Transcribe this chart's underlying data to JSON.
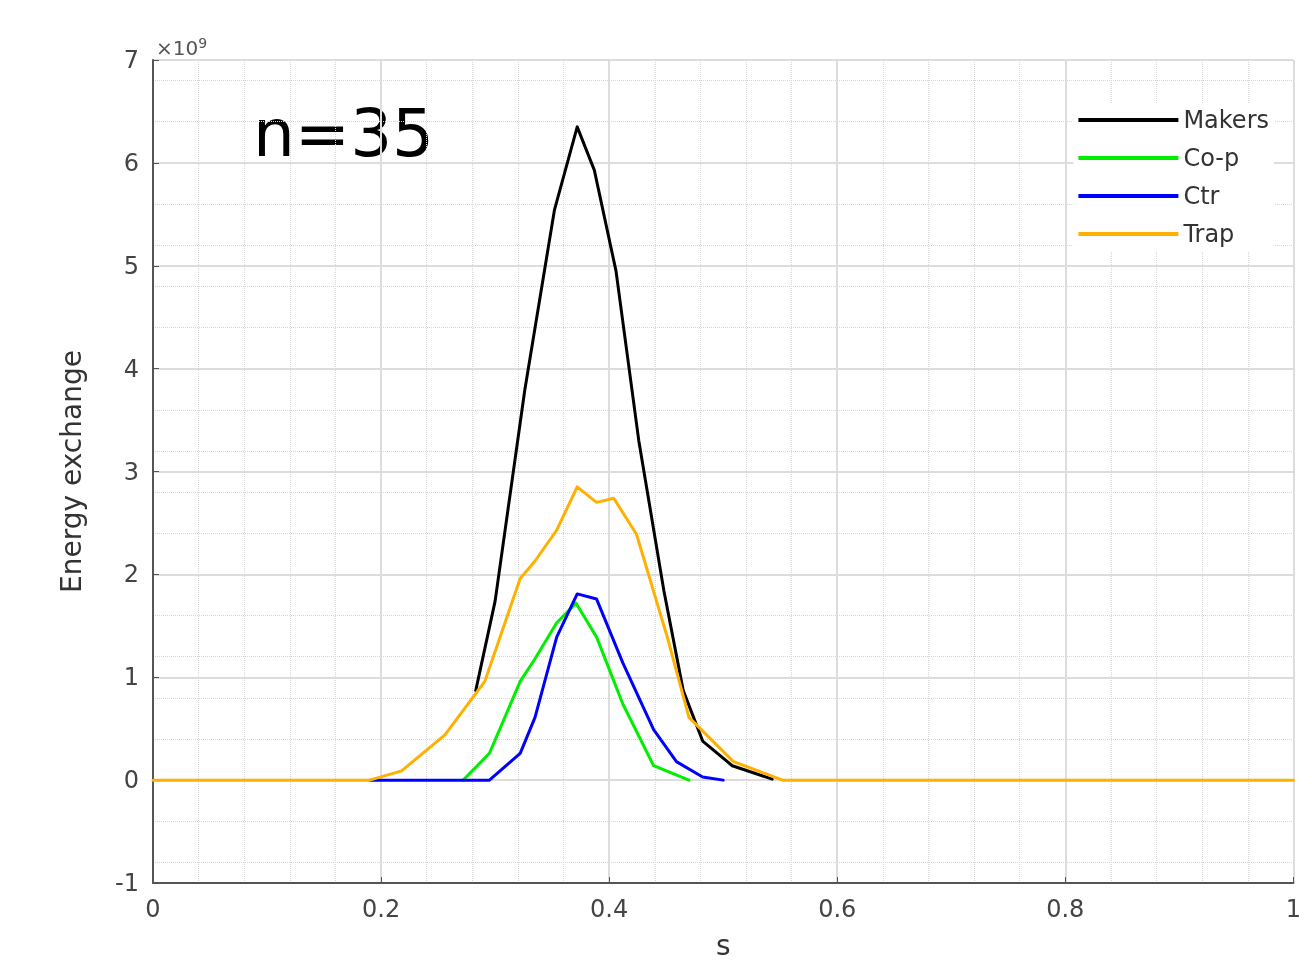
{
  "chart_data": {
    "type": "line",
    "xlabel": "s",
    "ylabel": "Energy exchange",
    "annotations": [
      "×10$^{9}$",
      "n=35"
    ],
    "xlim": [
      0,
      1
    ],
    "xticks": [
      0,
      0.2,
      0.4,
      0.6,
      0.8,
      1
    ],
    "ylim": [
      -1,
      7
    ],
    "yticks": [
      -1,
      0,
      1,
      2,
      3,
      4,
      5,
      6,
      7
    ],
    "grid": true,
    "legend": "top right",
    "marker": "none",
    "line_style": "solid",
    "series": [
      {
        "name": "Makers",
        "color": "#000000",
        "x": [
          0.283,
          0.3,
          0.326,
          0.352,
          0.372,
          0.387,
          0.406,
          0.426,
          0.448,
          0.465,
          0.482,
          0.508,
          0.543
        ],
        "values": [
          0.87,
          1.74,
          3.79,
          5.54,
          6.35,
          5.93,
          4.95,
          3.3,
          1.84,
          0.87,
          0.38,
          0.14,
          0.01
        ]
      },
      {
        "name": "Co-p",
        "color": "#00ee00",
        "x": [
          0.272,
          0.295,
          0.322,
          0.335,
          0.354,
          0.371,
          0.389,
          0.412,
          0.439,
          0.47
        ],
        "values": [
          0,
          0.26,
          0.96,
          1.18,
          1.53,
          1.72,
          1.39,
          0.74,
          0.14,
          0
        ]
      },
      {
        "name": "Ctr",
        "color": "#0000ff",
        "x": [
          0.19,
          0.295,
          0.322,
          0.335,
          0.354,
          0.372,
          0.389,
          0.412,
          0.439,
          0.459,
          0.482,
          0.5
        ],
        "values": [
          0,
          0,
          0.26,
          0.61,
          1.39,
          1.81,
          1.76,
          1.14,
          0.49,
          0.18,
          0.03,
          0
        ]
      },
      {
        "name": "Trap",
        "color": "#ffb000",
        "x": [
          0,
          0.19,
          0.218,
          0.256,
          0.291,
          0.322,
          0.335,
          0.354,
          0.372,
          0.389,
          0.404,
          0.424,
          0.451,
          0.47,
          0.509,
          0.552,
          1
        ],
        "values": [
          0,
          0,
          0.09,
          0.44,
          0.96,
          1.96,
          2.13,
          2.43,
          2.85,
          2.7,
          2.74,
          2.39,
          1.39,
          0.61,
          0.18,
          0,
          0
        ]
      }
    ]
  }
}
